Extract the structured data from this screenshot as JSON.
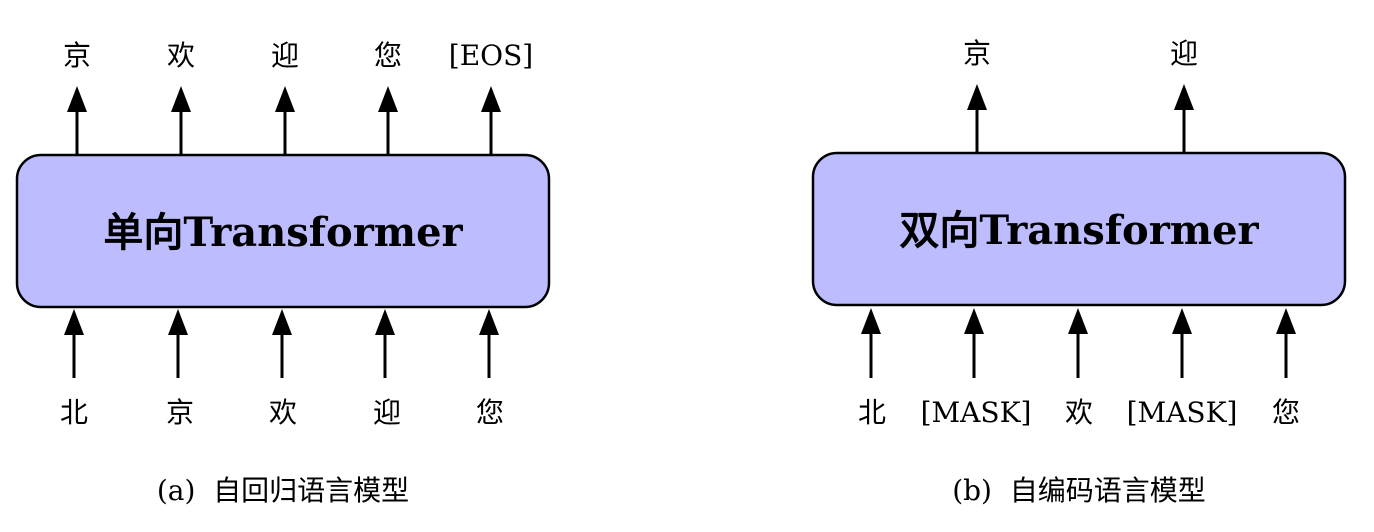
{
  "panels": [
    {
      "box_label": "单向Transformer",
      "outputs": [
        "京",
        "欢",
        "迎",
        "您",
        "[EOS]"
      ],
      "inputs": [
        "北",
        "京",
        "欢",
        "迎",
        "您"
      ],
      "caption": "(a)  自回归语言模型"
    },
    {
      "box_label": "双向Transformer",
      "outputs": [
        "京",
        "",
        "迎",
        "",
        ""
      ],
      "inputs": [
        "北",
        "[MASK]",
        "欢",
        "[MASK]",
        "您"
      ],
      "caption": "(b)  自编码语言模型"
    }
  ],
  "colors": {
    "box_fill": "#bcbcff",
    "stroke": "#000000"
  }
}
